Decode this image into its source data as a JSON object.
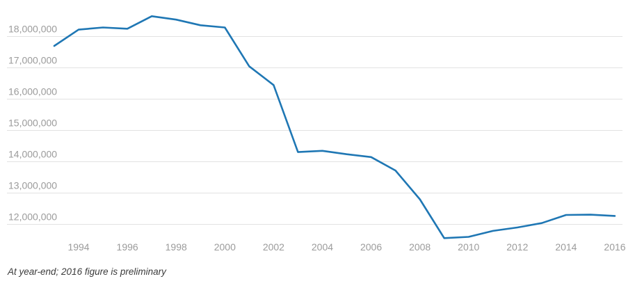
{
  "chart_data": {
    "type": "line",
    "title": "",
    "xlabel": "",
    "ylabel": "",
    "grid": "horizontal-only",
    "legend": "none",
    "x": [
      1993,
      1994,
      1995,
      1996,
      1997,
      1998,
      1999,
      2000,
      2001,
      2002,
      2003,
      2004,
      2005,
      2006,
      2007,
      2008,
      2009,
      2010,
      2011,
      2012,
      2013,
      2014,
      2015,
      2016
    ],
    "values": [
      17700000,
      18220000,
      18290000,
      18250000,
      18650000,
      18540000,
      18360000,
      18290000,
      17050000,
      16450000,
      14310000,
      14350000,
      14240000,
      14150000,
      13720000,
      12800000,
      11560000,
      11600000,
      11790000,
      11900000,
      12040000,
      12300000,
      12310000,
      12270000
    ],
    "xticks": [
      {
        "value": 1994,
        "label": "1994"
      },
      {
        "value": 1996,
        "label": "1996"
      },
      {
        "value": 1998,
        "label": "1998"
      },
      {
        "value": 2000,
        "label": "2000"
      },
      {
        "value": 2002,
        "label": "2002"
      },
      {
        "value": 2004,
        "label": "2004"
      },
      {
        "value": 2006,
        "label": "2006"
      },
      {
        "value": 2008,
        "label": "2008"
      },
      {
        "value": 2010,
        "label": "2010"
      },
      {
        "value": 2012,
        "label": "2012"
      },
      {
        "value": 2014,
        "label": "2014"
      },
      {
        "value": 2016,
        "label": "2016"
      }
    ],
    "yticks": [
      {
        "value": 18000000,
        "label": "18,000,000"
      },
      {
        "value": 17000000,
        "label": "17,000,000"
      },
      {
        "value": 16000000,
        "label": "16,000,000"
      },
      {
        "value": 15000000,
        "label": "15,000,000"
      },
      {
        "value": 14000000,
        "label": "14,000,000"
      },
      {
        "value": 13000000,
        "label": "13,000,000"
      },
      {
        "value": 12000000,
        "label": "12,000,000"
      }
    ],
    "ylim": [
      11450000,
      19000000
    ],
    "xlim": [
      1993,
      2016
    ],
    "footnote": "At year-end; 2016 figure is preliminary",
    "colors": {
      "line": "#1f77b4",
      "gridline": "#e2e2e2",
      "tick_label": "#9b9b9b",
      "footnote_text": "#3b3b3b"
    }
  }
}
